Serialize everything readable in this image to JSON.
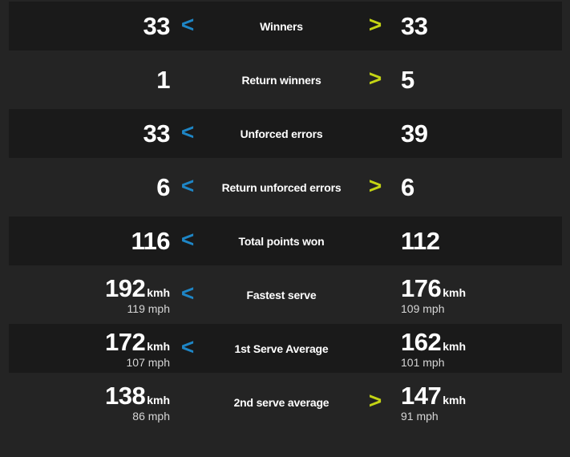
{
  "colors": {
    "background": "#242424",
    "row_shade": "#1a1a1a",
    "value_text": "#ffffff",
    "label_text": "#ffffff",
    "sub_text": "#d6d6d6",
    "left_arrow": "#1e86c6",
    "right_arrow": "#c4d414"
  },
  "arrows": {
    "left_glyph": "<",
    "right_glyph": ">"
  },
  "stats": {
    "rows": [
      {
        "label": "Winners",
        "left": {
          "value": "33",
          "unit": "",
          "sub": ""
        },
        "right": {
          "value": "33",
          "unit": "",
          "sub": ""
        },
        "left_arrow": true,
        "right_arrow": true
      },
      {
        "label": "Return winners",
        "left": {
          "value": "1",
          "unit": "",
          "sub": ""
        },
        "right": {
          "value": "5",
          "unit": "",
          "sub": ""
        },
        "left_arrow": false,
        "right_arrow": true
      },
      {
        "label": "Unforced errors",
        "left": {
          "value": "33",
          "unit": "",
          "sub": ""
        },
        "right": {
          "value": "39",
          "unit": "",
          "sub": ""
        },
        "left_arrow": true,
        "right_arrow": false
      },
      {
        "label": "Return unforced errors",
        "left": {
          "value": "6",
          "unit": "",
          "sub": ""
        },
        "right": {
          "value": "6",
          "unit": "",
          "sub": ""
        },
        "left_arrow": true,
        "right_arrow": true
      },
      {
        "label": "Total points won",
        "left": {
          "value": "116",
          "unit": "",
          "sub": ""
        },
        "right": {
          "value": "112",
          "unit": "",
          "sub": ""
        },
        "left_arrow": true,
        "right_arrow": false
      },
      {
        "label": "Fastest serve",
        "left": {
          "value": "192",
          "unit": "kmh",
          "sub": "119 mph"
        },
        "right": {
          "value": "176",
          "unit": "kmh",
          "sub": "109 mph"
        },
        "left_arrow": true,
        "right_arrow": false
      },
      {
        "label": "1st Serve Average",
        "left": {
          "value": "172",
          "unit": "kmh",
          "sub": "107 mph"
        },
        "right": {
          "value": "162",
          "unit": "kmh",
          "sub": "101 mph"
        },
        "left_arrow": true,
        "right_arrow": false
      },
      {
        "label": "2nd serve average",
        "left": {
          "value": "138",
          "unit": "kmh",
          "sub": "86 mph"
        },
        "right": {
          "value": "147",
          "unit": "kmh",
          "sub": "91 mph"
        },
        "left_arrow": false,
        "right_arrow": true
      }
    ]
  }
}
